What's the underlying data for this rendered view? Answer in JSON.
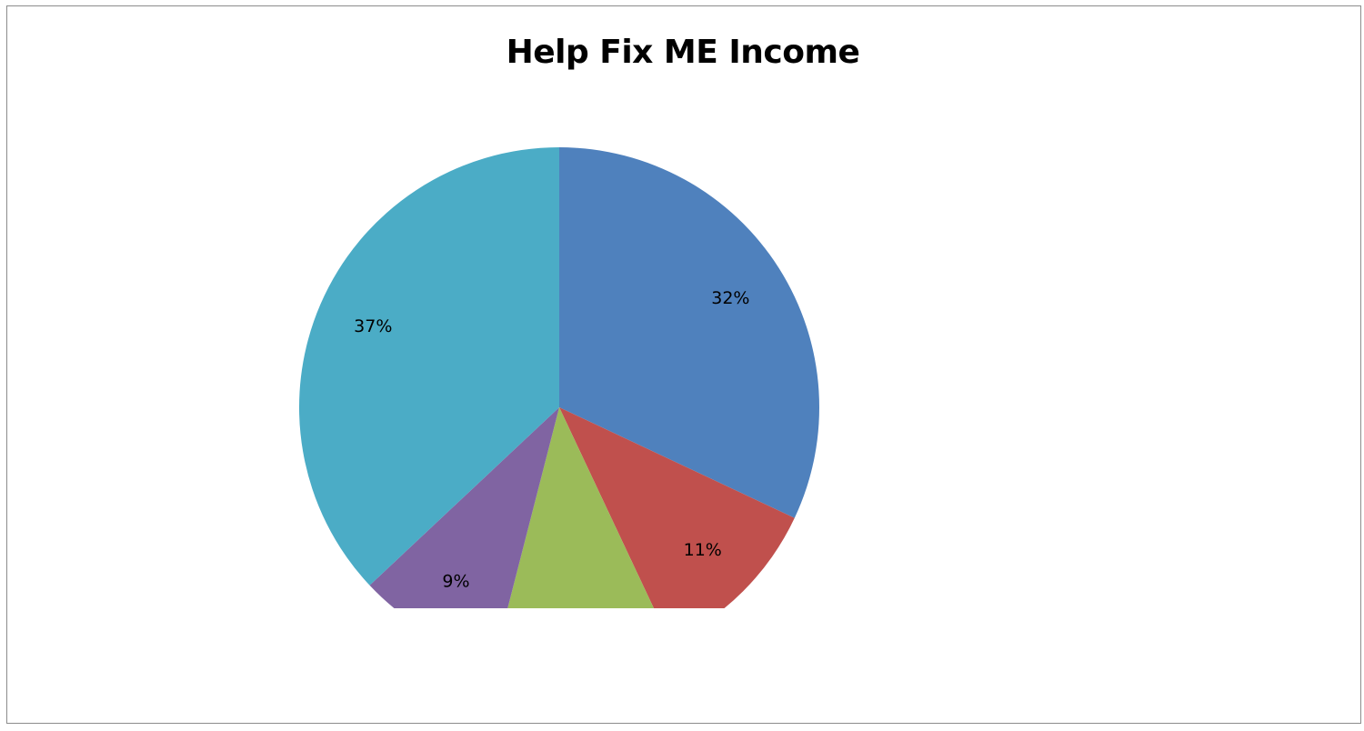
{
  "chart_data": {
    "type": "pie",
    "title": "Help Fix ME Income",
    "slices": [
      {
        "label": "32%",
        "value": 32,
        "color": "#4F81BD"
      },
      {
        "label": "11%",
        "value": 11,
        "color": "#C0504D"
      },
      {
        "label": "",
        "value": 11,
        "color": "#9BBB59"
      },
      {
        "label": "9%",
        "value": 9,
        "color": "#8064A2"
      },
      {
        "label": "37%",
        "value": 37,
        "color": "#4BACC6"
      }
    ],
    "legend": "none"
  }
}
